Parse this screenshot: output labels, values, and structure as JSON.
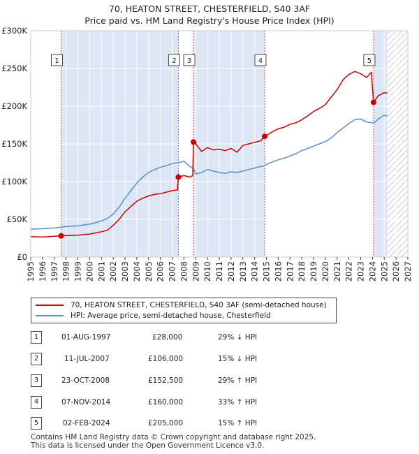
{
  "header": {
    "title_line1": "70, HEATON STREET, CHESTERFIELD, S40 3AF",
    "title_line2": "Price paid vs. HM Land Registry's House Price Index (HPI)"
  },
  "colors": {
    "property": "#cc0000",
    "hpi": "#5b8ccc",
    "shade": "#dce6f5",
    "marker_line": "#cc0000"
  },
  "chart_data": {
    "type": "line",
    "title": "Price paid vs. HM Land Registry's House Price Index (HPI)",
    "xlim": [
      1995,
      2027
    ],
    "ylim": [
      0,
      300000
    ],
    "x_ticks": [
      "1995",
      "1996",
      "1997",
      "1998",
      "1999",
      "2000",
      "2001",
      "2002",
      "2003",
      "2004",
      "2005",
      "2006",
      "2007",
      "2008",
      "2009",
      "2010",
      "2011",
      "2012",
      "2013",
      "2014",
      "2015",
      "2016",
      "2017",
      "2018",
      "2019",
      "2020",
      "2021",
      "2022",
      "2023",
      "2024",
      "2025",
      "2026",
      "2027"
    ],
    "y_ticks": [
      {
        "value": 0,
        "label": "£0"
      },
      {
        "value": 50000,
        "label": "£50K"
      },
      {
        "value": 100000,
        "label": "£100K"
      },
      {
        "value": 150000,
        "label": "£150K"
      },
      {
        "value": 200000,
        "label": "£200K"
      },
      {
        "value": 250000,
        "label": "£250K"
      },
      {
        "value": 300000,
        "label": "£300K"
      }
    ],
    "forecast_from": 2025.25,
    "series": [
      {
        "name": "70, HEATON STREET, CHESTERFIELD, S40 3AF (semi-detached house)",
        "color": "#cc0000",
        "points": [
          [
            1995,
            27000
          ],
          [
            1996,
            26500
          ],
          [
            1997,
            27500
          ],
          [
            1997.58,
            28000
          ],
          [
            1998,
            28500
          ],
          [
            1999,
            29000
          ],
          [
            2000,
            30500
          ],
          [
            2000.5,
            32000
          ],
          [
            2001,
            33500
          ],
          [
            2001.5,
            35500
          ],
          [
            2002,
            42000
          ],
          [
            2002.5,
            50000
          ],
          [
            2003,
            60000
          ],
          [
            2003.5,
            67000
          ],
          [
            2004,
            74000
          ],
          [
            2004.5,
            78000
          ],
          [
            2005,
            81000
          ],
          [
            2005.5,
            83000
          ],
          [
            2006,
            84000
          ],
          [
            2006.5,
            86000
          ],
          [
            2007,
            88000
          ],
          [
            2007.45,
            89000
          ],
          [
            2007.53,
            106000
          ],
          [
            2008,
            108000
          ],
          [
            2008.5,
            106000
          ],
          [
            2008.75,
            108000
          ],
          [
            2008.81,
            152500
          ],
          [
            2009,
            150000
          ],
          [
            2009.5,
            140000
          ],
          [
            2010,
            145000
          ],
          [
            2010.5,
            142000
          ],
          [
            2011,
            143000
          ],
          [
            2011.5,
            141000
          ],
          [
            2012,
            144000
          ],
          [
            2012.5,
            139000
          ],
          [
            2013,
            148000
          ],
          [
            2013.5,
            150000
          ],
          [
            2014,
            152000
          ],
          [
            2014.5,
            154000
          ],
          [
            2014.85,
            160000
          ],
          [
            2015,
            161000
          ],
          [
            2015.5,
            166000
          ],
          [
            2016,
            170000
          ],
          [
            2016.5,
            172000
          ],
          [
            2017,
            176000
          ],
          [
            2017.5,
            178000
          ],
          [
            2018,
            182000
          ],
          [
            2018.5,
            187000
          ],
          [
            2019,
            193000
          ],
          [
            2019.5,
            197000
          ],
          [
            2020,
            202000
          ],
          [
            2020.5,
            212000
          ],
          [
            2021,
            222000
          ],
          [
            2021.5,
            235000
          ],
          [
            2022,
            242000
          ],
          [
            2022.5,
            246000
          ],
          [
            2023,
            243000
          ],
          [
            2023.5,
            238000
          ],
          [
            2023.9,
            245000
          ],
          [
            2024.09,
            205000
          ],
          [
            2024.5,
            214000
          ],
          [
            2025,
            218000
          ],
          [
            2025.25,
            217000
          ]
        ]
      },
      {
        "name": "HPI: Average price, semi-detached house, Chesterfield",
        "color": "#5b8ccc",
        "points": [
          [
            1995,
            37000
          ],
          [
            1996,
            37500
          ],
          [
            1997,
            38500
          ],
          [
            1997.58,
            39500
          ],
          [
            1998,
            40500
          ],
          [
            1999,
            41500
          ],
          [
            2000,
            43500
          ],
          [
            2000.5,
            45500
          ],
          [
            2001,
            48000
          ],
          [
            2001.5,
            51000
          ],
          [
            2002,
            57000
          ],
          [
            2002.5,
            66000
          ],
          [
            2003,
            78000
          ],
          [
            2003.5,
            88000
          ],
          [
            2004,
            98000
          ],
          [
            2004.5,
            106000
          ],
          [
            2005,
            112000
          ],
          [
            2005.5,
            116000
          ],
          [
            2006,
            119000
          ],
          [
            2006.5,
            121000
          ],
          [
            2007,
            124000
          ],
          [
            2007.53,
            125000
          ],
          [
            2008,
            127000
          ],
          [
            2008.5,
            120000
          ],
          [
            2008.81,
            118000
          ],
          [
            2009,
            110000
          ],
          [
            2009.5,
            112000
          ],
          [
            2010,
            116000
          ],
          [
            2010.5,
            114000
          ],
          [
            2011,
            112000
          ],
          [
            2011.5,
            111000
          ],
          [
            2012,
            113000
          ],
          [
            2012.5,
            112000
          ],
          [
            2013,
            114000
          ],
          [
            2013.5,
            116000
          ],
          [
            2014,
            118000
          ],
          [
            2014.5,
            120000
          ],
          [
            2014.85,
            121000
          ],
          [
            2015,
            123000
          ],
          [
            2015.5,
            126000
          ],
          [
            2016,
            129000
          ],
          [
            2016.5,
            131000
          ],
          [
            2017,
            134000
          ],
          [
            2017.5,
            137000
          ],
          [
            2018,
            141000
          ],
          [
            2018.5,
            144000
          ],
          [
            2019,
            147000
          ],
          [
            2019.5,
            150000
          ],
          [
            2020,
            153000
          ],
          [
            2020.5,
            158000
          ],
          [
            2021,
            165000
          ],
          [
            2021.5,
            171000
          ],
          [
            2022,
            177000
          ],
          [
            2022.5,
            182000
          ],
          [
            2023,
            183000
          ],
          [
            2023.5,
            179000
          ],
          [
            2024,
            178000
          ],
          [
            2024.09,
            177000
          ],
          [
            2024.5,
            183000
          ],
          [
            2025,
            188000
          ],
          [
            2025.25,
            187000
          ]
        ]
      }
    ],
    "transactions": [
      {
        "id": "1",
        "x": 1997.58,
        "price": 28000
      },
      {
        "id": "2",
        "x": 2007.53,
        "price": 106000
      },
      {
        "id": "3",
        "x": 2008.81,
        "price": 152500
      },
      {
        "id": "4",
        "x": 2014.85,
        "price": 160000
      },
      {
        "id": "5",
        "x": 2024.09,
        "price": 205000
      }
    ]
  },
  "legend": {
    "property_label": "70, HEATON STREET, CHESTERFIELD, S40 3AF (semi-detached house)",
    "hpi_label": "HPI: Average price, semi-detached house, Chesterfield"
  },
  "table": {
    "rows": [
      {
        "num": "1",
        "date": "01-AUG-1997",
        "price": "£28,000",
        "hpi": "29% ↓ HPI"
      },
      {
        "num": "2",
        "date": "11-JUL-2007",
        "price": "£106,000",
        "hpi": "15% ↓ HPI"
      },
      {
        "num": "3",
        "date": "23-OCT-2008",
        "price": "£152,500",
        "hpi": "29% ↑ HPI"
      },
      {
        "num": "4",
        "date": "07-NOV-2014",
        "price": "£160,000",
        "hpi": "33% ↑ HPI"
      },
      {
        "num": "5",
        "date": "02-FEB-2024",
        "price": "£205,000",
        "hpi": "15% ↑ HPI"
      }
    ]
  },
  "footer": {
    "line1": "Contains HM Land Registry data © Crown copyright and database right 2025.",
    "line2": "This data is licensed under the Open Government Licence v3.0."
  }
}
